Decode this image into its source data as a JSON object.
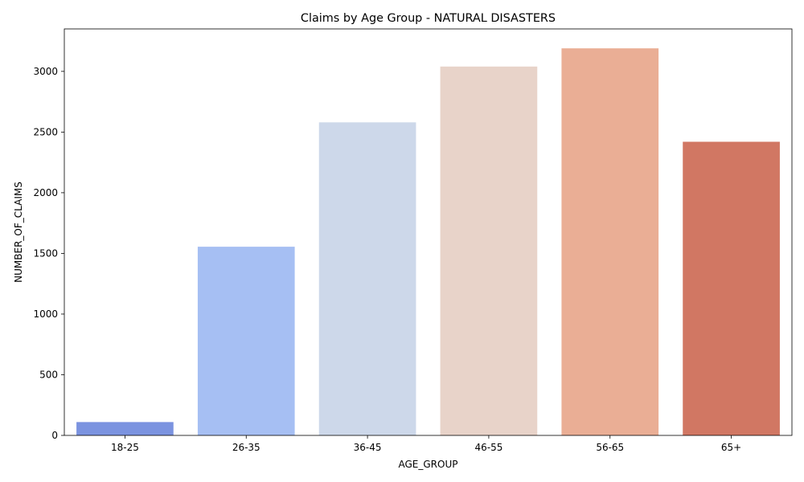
{
  "chart_data": {
    "type": "bar",
    "title": "Claims by Age Group - NATURAL DISASTERS",
    "xlabel": "AGE_GROUP",
    "ylabel": "NUMBER_OF_CLAIMS",
    "categories": [
      "18-25",
      "26-35",
      "36-45",
      "46-55",
      "56-65",
      "65+"
    ],
    "values": [
      110,
      1555,
      2580,
      3040,
      3190,
      2420
    ],
    "colors": [
      "#7b93e0",
      "#a6bff3",
      "#cdd8ea",
      "#e8d3c9",
      "#eaae95",
      "#d17763"
    ],
    "ylim": [
      0,
      3350
    ],
    "yticks": [
      0,
      500,
      1000,
      1500,
      2000,
      2500,
      3000
    ],
    "ytick_labels": [
      "0",
      "500",
      "1000",
      "1500",
      "2000",
      "2500",
      "3000"
    ],
    "grid": false,
    "legend": "none"
  }
}
